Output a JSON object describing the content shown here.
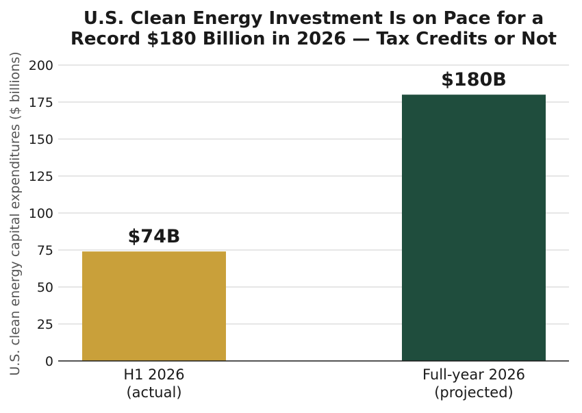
{
  "chart_data": {
    "type": "bar",
    "title_lines": [
      "U.S. Clean Energy Investment Is on Pace for a",
      "Record $180 Billion in 2026 — Tax Credits or Not"
    ],
    "xlabel": "",
    "ylabel": "U.S. clean energy capital expenditures ($ billions)",
    "ylim": [
      0,
      200
    ],
    "yticks": [
      0,
      25,
      50,
      75,
      100,
      125,
      150,
      175,
      200
    ],
    "grid": true,
    "categories": [
      {
        "lines": [
          "H1 2026",
          "(actual)"
        ]
      },
      {
        "lines": [
          "Full-year 2026",
          "(projected)"
        ]
      }
    ],
    "values": [
      74,
      180
    ],
    "data_labels": [
      "$74B",
      "$180B"
    ],
    "colors": [
      "#c9a03a",
      "#1f4d3d"
    ]
  }
}
